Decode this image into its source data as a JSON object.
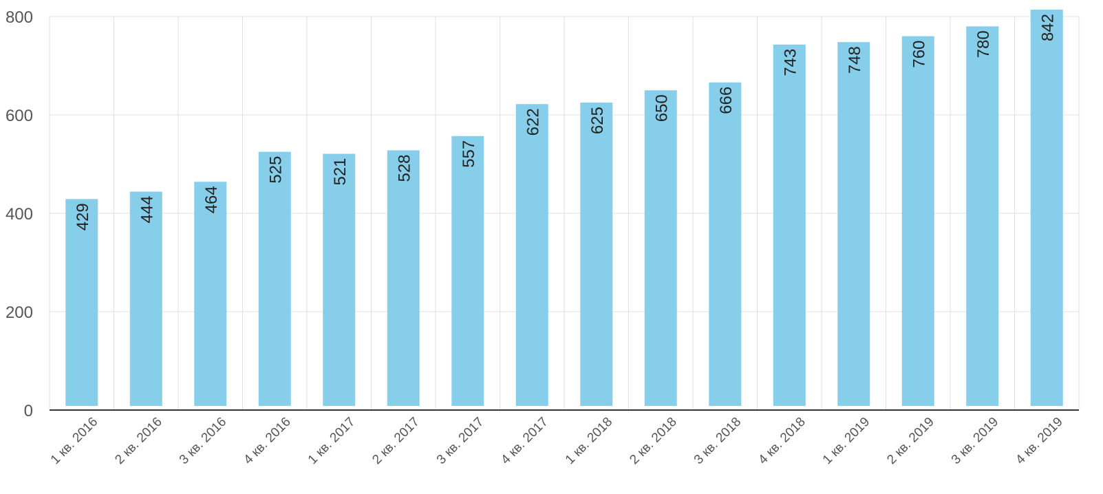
{
  "chart_data": {
    "type": "bar",
    "categories": [
      "1 кв. 2016",
      "2 кв. 2016",
      "3 кв. 2016",
      "4 кв. 2016",
      "1 кв. 2017",
      "2 кв. 2017",
      "3 кв. 2017",
      "4 кв. 2017",
      "1 кв. 2018",
      "2 кв. 2018",
      "3 кв. 2018",
      "4 кв. 2018",
      "1 кв. 2019",
      "2 кв. 2019",
      "3 кв. 2019",
      "4 кв. 2019"
    ],
    "values": [
      429,
      444,
      464,
      525,
      521,
      528,
      557,
      622,
      625,
      650,
      666,
      743,
      748,
      760,
      780,
      842
    ],
    "ylim": [
      0,
      800
    ],
    "yticks": [
      0,
      200,
      400,
      600,
      800
    ],
    "grid": true,
    "legend": "none",
    "colors": {
      "bar": "#87ceeb",
      "grid": "#e0e0e0",
      "axis": "#333333"
    }
  }
}
